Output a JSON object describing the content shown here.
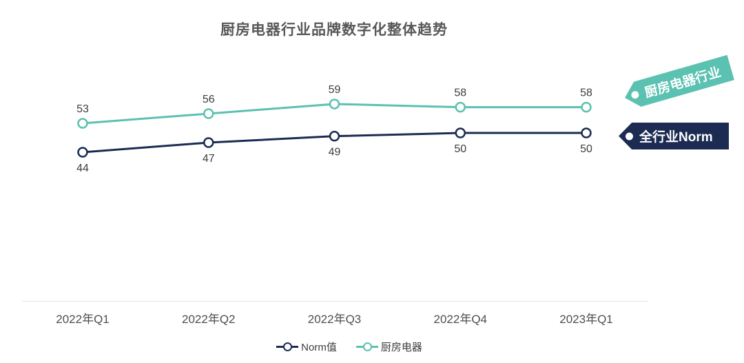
{
  "title": "厨房电器行业品牌数字化整体趋势",
  "chart_data": {
    "type": "line",
    "title": "厨房电器行业品牌数字化整体趋势",
    "categories": [
      "2022年Q1",
      "2022年Q2",
      "2022年Q3",
      "2022年Q4",
      "2023年Q1"
    ],
    "series": [
      {
        "name": "Norm值",
        "values": [
          44,
          47,
          49,
          50,
          50
        ],
        "color": "#1B2B52",
        "label_position": "below",
        "marker": "open-circle"
      },
      {
        "name": "厨房电器",
        "values": [
          53,
          56,
          59,
          58,
          58
        ],
        "color": "#5BC1B1",
        "label_position": "above",
        "marker": "open-circle"
      }
    ],
    "xlabel": "",
    "ylabel": "",
    "ylim": [
      40,
      65
    ],
    "grid": false,
    "data_labels": true,
    "legend_position": "bottom"
  },
  "tags": {
    "industry": {
      "label": "厨房电器行业",
      "color": "#5BC1B1"
    },
    "norm": {
      "label": "全行业Norm",
      "color": "#1B2B52"
    }
  },
  "legend": {
    "items": [
      {
        "label": "Norm值",
        "color": "#1B2B52"
      },
      {
        "label": "厨房电器",
        "color": "#5BC1B1"
      }
    ]
  },
  "colors": {
    "title_text": "#595757",
    "value_label": "#3D3D3D",
    "axis_label": "#4D4D4D",
    "axis_line": "#E5E5E5"
  }
}
